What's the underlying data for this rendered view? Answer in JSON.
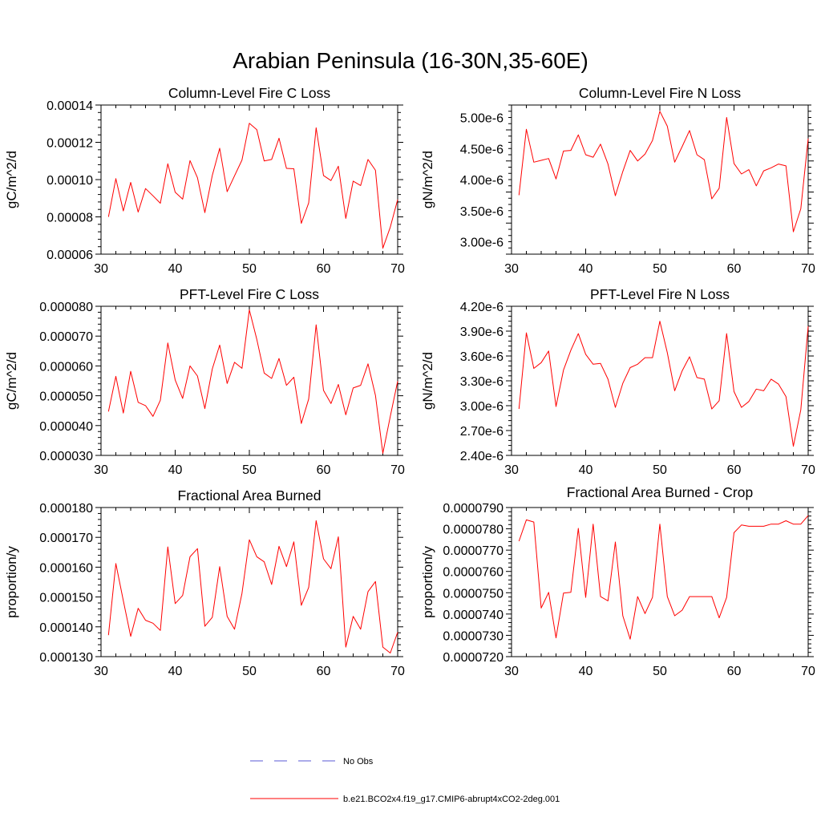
{
  "figure_title": "Arabian Peninsula (16-30N,35-60E)",
  "legend": {
    "no_obs_label": "No Obs",
    "no_obs_color": "#5a5ad6",
    "model_label": "b.e21.BCO2x4.f19_g17.CMIP6-abrupt4xCO2-2deg.001",
    "model_color": "#ff0000"
  },
  "chart_data": [
    {
      "type": "line",
      "title": "Column-Level Fire C Loss",
      "xlabel": "",
      "ylabel": "gC/m^2/d",
      "xlim": [
        30,
        70
      ],
      "ylim": [
        6e-05,
        0.00014
      ],
      "xticks": [
        30,
        40,
        50,
        60,
        70
      ],
      "yticks": [
        6e-05,
        8e-05,
        0.0001,
        0.00012,
        0.00014
      ],
      "ytick_labels": [
        "0.00006",
        "0.00008",
        "0.00010",
        "0.00012",
        "0.00014"
      ],
      "x": [
        31,
        32,
        33,
        34,
        35,
        36,
        37,
        38,
        39,
        40,
        41,
        42,
        43,
        44,
        45,
        46,
        47,
        48,
        49,
        50,
        51,
        52,
        53,
        54,
        55,
        56,
        57,
        58,
        59,
        60,
        61,
        62,
        63,
        64,
        65,
        66,
        67,
        68,
        69,
        70
      ],
      "series": [
        {
          "name": "b.e21.BCO2x4.f19_g17.CMIP6-abrupt4xCO2-2deg.001",
          "values": [
            8e-05,
            0.0001005,
            8.32e-05,
            9.85e-05,
            8.26e-05,
            9.52e-05,
            9.13e-05,
            8.73e-05,
            0.0001085,
            9.32e-05,
            8.95e-05,
            0.0001102,
            0.000101,
            8.23e-05,
            0.0001023,
            0.0001168,
            9.35e-05,
            0.000102,
            0.0001105,
            0.0001302,
            0.0001268,
            0.00011,
            0.0001108,
            0.0001222,
            0.000106,
            0.0001058,
            7.65e-05,
            8.75e-05,
            0.0001278,
            0.0001022,
            9.95e-05,
            0.0001072,
            7.92e-05,
            9.92e-05,
            9.68e-05,
            0.0001108,
            0.000105,
            6.32e-05,
            7.45e-05,
            8.93e-05
          ]
        }
      ]
    },
    {
      "type": "line",
      "title": "Column-Level Fire N Loss",
      "xlabel": "",
      "ylabel": "gN/m^2/d",
      "xlim": [
        30,
        70
      ],
      "ylim": [
        2.8e-06,
        5.2e-06
      ],
      "xticks": [
        30,
        40,
        50,
        60,
        70
      ],
      "yticks": [
        3e-06,
        3.5e-06,
        4e-06,
        4.5e-06,
        5e-06
      ],
      "ytick_labels": [
        "3.00e-6",
        "3.50e-6",
        "4.00e-6",
        "4.50e-6",
        "5.00e-6"
      ],
      "x": [
        31,
        32,
        33,
        34,
        35,
        36,
        37,
        38,
        39,
        40,
        41,
        42,
        43,
        44,
        45,
        46,
        47,
        48,
        49,
        50,
        51,
        52,
        53,
        54,
        55,
        56,
        57,
        58,
        59,
        60,
        61,
        62,
        63,
        64,
        65,
        66,
        67,
        68,
        69,
        70
      ],
      "series": [
        {
          "name": "b.e21.BCO2x4.f19_g17.CMIP6-abrupt4xCO2-2deg.001",
          "values": [
            3.75e-06,
            4.81e-06,
            4.28e-06,
            4.31e-06,
            4.34e-06,
            4.01e-06,
            4.46e-06,
            4.47e-06,
            4.72e-06,
            4.4e-06,
            4.36e-06,
            4.57e-06,
            4.25e-06,
            3.74e-06,
            4.13e-06,
            4.47e-06,
            4.3e-06,
            4.41e-06,
            4.63e-06,
            5.1e-06,
            4.86e-06,
            4.28e-06,
            4.53e-06,
            4.79e-06,
            4.4e-06,
            4.32e-06,
            3.69e-06,
            3.86e-06,
            5e-06,
            4.26e-06,
            4.09e-06,
            4.16e-06,
            3.9e-06,
            4.14e-06,
            4.19e-06,
            4.25e-06,
            4.22e-06,
            3.16e-06,
            3.53e-06,
            4.66e-06
          ]
        }
      ]
    },
    {
      "type": "line",
      "title": "PFT-Level Fire C Loss",
      "xlabel": "",
      "ylabel": "gC/m^2/d",
      "xlim": [
        30,
        70
      ],
      "ylim": [
        3e-05,
        8e-05
      ],
      "xticks": [
        30,
        40,
        50,
        60,
        70
      ],
      "yticks": [
        3e-05,
        4e-05,
        5e-05,
        6e-05,
        7e-05,
        8e-05
      ],
      "ytick_labels": [
        "0.000030",
        "0.000040",
        "0.000050",
        "0.000060",
        "0.000070",
        "0.000080"
      ],
      "x": [
        31,
        32,
        33,
        34,
        35,
        36,
        37,
        38,
        39,
        40,
        41,
        42,
        43,
        44,
        45,
        46,
        47,
        48,
        49,
        50,
        51,
        52,
        53,
        54,
        55,
        56,
        57,
        58,
        59,
        60,
        61,
        62,
        63,
        64,
        65,
        66,
        67,
        68,
        69,
        70
      ],
      "series": [
        {
          "name": "b.e21.BCO2x4.f19_g17.CMIP6-abrupt4xCO2-2deg.001",
          "values": [
            4.47e-05,
            5.65e-05,
            4.42e-05,
            5.82e-05,
            4.78e-05,
            4.67e-05,
            4.31e-05,
            4.85e-05,
            6.77e-05,
            5.53e-05,
            4.91e-05,
            6e-05,
            5.66e-05,
            4.57e-05,
            5.9e-05,
            6.7e-05,
            5.41e-05,
            6.12e-05,
            5.92e-05,
            7.88e-05,
            6.89e-05,
            5.76e-05,
            5.58e-05,
            6.25e-05,
            5.35e-05,
            5.62e-05,
            4.07e-05,
            4.89e-05,
            7.38e-05,
            5.18e-05,
            4.74e-05,
            5.38e-05,
            4.36e-05,
            5.26e-05,
            5.35e-05,
            6.07e-05,
            5.01e-05,
            3.07e-05,
            4.31e-05,
            5.49e-05
          ]
        }
      ]
    },
    {
      "type": "line",
      "title": "PFT-Level Fire N Loss",
      "xlabel": "",
      "ylabel": "gN/m^2/d",
      "xlim": [
        30,
        70
      ],
      "ylim": [
        2.4e-06,
        4.2e-06
      ],
      "xticks": [
        30,
        40,
        50,
        60,
        70
      ],
      "yticks": [
        2.4e-06,
        2.7e-06,
        3e-06,
        3.3e-06,
        3.6e-06,
        3.9e-06,
        4.2e-06
      ],
      "ytick_labels": [
        "2.40e-6",
        "2.70e-6",
        "3.00e-6",
        "3.30e-6",
        "3.60e-6",
        "3.90e-6",
        "4.20e-6"
      ],
      "x": [
        31,
        32,
        33,
        34,
        35,
        36,
        37,
        38,
        39,
        40,
        41,
        42,
        43,
        44,
        45,
        46,
        47,
        48,
        49,
        50,
        51,
        52,
        53,
        54,
        55,
        56,
        57,
        58,
        59,
        60,
        61,
        62,
        63,
        64,
        65,
        66,
        67,
        68,
        69,
        70
      ],
      "series": [
        {
          "name": "b.e21.BCO2x4.f19_g17.CMIP6-abrupt4xCO2-2deg.001",
          "values": [
            2.96e-06,
            3.88e-06,
            3.45e-06,
            3.52e-06,
            3.66e-06,
            2.99e-06,
            3.43e-06,
            3.67e-06,
            3.87e-06,
            3.62e-06,
            3.5e-06,
            3.51e-06,
            3.32e-06,
            2.98e-06,
            3.27e-06,
            3.46e-06,
            3.5e-06,
            3.58e-06,
            3.58e-06,
            4.02e-06,
            3.64e-06,
            3.18e-06,
            3.42e-06,
            3.59e-06,
            3.34e-06,
            3.32e-06,
            2.96e-06,
            3.06e-06,
            3.87e-06,
            3.17e-06,
            2.98e-06,
            3.05e-06,
            3.2e-06,
            3.18e-06,
            3.32e-06,
            3.26e-06,
            3.11e-06,
            2.51e-06,
            2.95e-06,
            3.96e-06
          ]
        }
      ]
    },
    {
      "type": "line",
      "title": "Fractional Area Burned",
      "xlabel": "",
      "ylabel": "proportion/y",
      "xlim": [
        30,
        70
      ],
      "ylim": [
        0.00013,
        0.00018
      ],
      "xticks": [
        30,
        40,
        50,
        60,
        70
      ],
      "yticks": [
        0.00013,
        0.00014,
        0.00015,
        0.00016,
        0.00017,
        0.00018
      ],
      "ytick_labels": [
        "0.000130",
        "0.000140",
        "0.000150",
        "0.000160",
        "0.000170",
        "0.000180"
      ],
      "x": [
        31,
        32,
        33,
        34,
        35,
        36,
        37,
        38,
        39,
        40,
        41,
        42,
        43,
        44,
        45,
        46,
        47,
        48,
        49,
        50,
        51,
        52,
        53,
        54,
        55,
        56,
        57,
        58,
        59,
        60,
        61,
        62,
        63,
        64,
        65,
        66,
        67,
        68,
        69,
        70
      ],
      "series": [
        {
          "name": "b.e21.BCO2x4.f19_g17.CMIP6-abrupt4xCO2-2deg.001",
          "values": [
            0.0001372,
            0.0001612,
            0.0001488,
            0.0001368,
            0.0001462,
            0.0001422,
            0.0001412,
            0.0001388,
            0.0001668,
            0.0001478,
            0.0001505,
            0.0001635,
            0.0001662,
            0.0001402,
            0.0001432,
            0.0001602,
            0.0001435,
            0.0001392,
            0.0001512,
            0.0001692,
            0.0001635,
            0.0001618,
            0.0001542,
            0.000167,
            0.0001602,
            0.0001685,
            0.0001472,
            0.0001532,
            0.0001756,
            0.0001628,
            0.0001595,
            0.0001702,
            0.0001332,
            0.0001435,
            0.0001392,
            0.0001518,
            0.0001552,
            0.0001332,
            0.0001312,
            0.0001382
          ]
        }
      ]
    },
    {
      "type": "line",
      "title": "Fractional Area Burned - Crop",
      "xlabel": "",
      "ylabel": "proportion/y",
      "xlim": [
        30,
        70
      ],
      "ylim": [
        7.2e-05,
        7.9e-05
      ],
      "xticks": [
        30,
        40,
        50,
        60,
        70
      ],
      "yticks": [
        7.2e-05,
        7.3e-05,
        7.4e-05,
        7.5e-05,
        7.6e-05,
        7.7e-05,
        7.8e-05,
        7.9e-05
      ],
      "ytick_labels": [
        "0.0000720",
        "0.0000730",
        "0.0000740",
        "0.0000750",
        "0.0000760",
        "0.0000770",
        "0.0000780",
        "0.0000790"
      ],
      "x": [
        31,
        32,
        33,
        34,
        35,
        36,
        37,
        38,
        39,
        40,
        41,
        42,
        43,
        44,
        45,
        46,
        47,
        48,
        49,
        50,
        51,
        52,
        53,
        54,
        55,
        56,
        57,
        58,
        59,
        60,
        61,
        62,
        63,
        64,
        65,
        66,
        67,
        68,
        69,
        70
      ],
      "series": [
        {
          "name": "b.e21.BCO2x4.f19_g17.CMIP6-abrupt4xCO2-2deg.001",
          "values": [
            7.742e-05,
            7.842e-05,
            7.832e-05,
            7.428e-05,
            7.502e-05,
            7.288e-05,
            7.498e-05,
            7.502e-05,
            7.802e-05,
            7.478e-05,
            7.822e-05,
            7.482e-05,
            7.462e-05,
            7.738e-05,
            7.392e-05,
            7.282e-05,
            7.482e-05,
            7.402e-05,
            7.478e-05,
            7.822e-05,
            7.482e-05,
            7.392e-05,
            7.418e-05,
            7.482e-05,
            7.482e-05,
            7.482e-05,
            7.482e-05,
            7.382e-05,
            7.478e-05,
            7.782e-05,
            7.818e-05,
            7.812e-05,
            7.812e-05,
            7.812e-05,
            7.822e-05,
            7.822e-05,
            7.838e-05,
            7.822e-05,
            7.822e-05,
            7.862e-05
          ]
        }
      ]
    }
  ]
}
